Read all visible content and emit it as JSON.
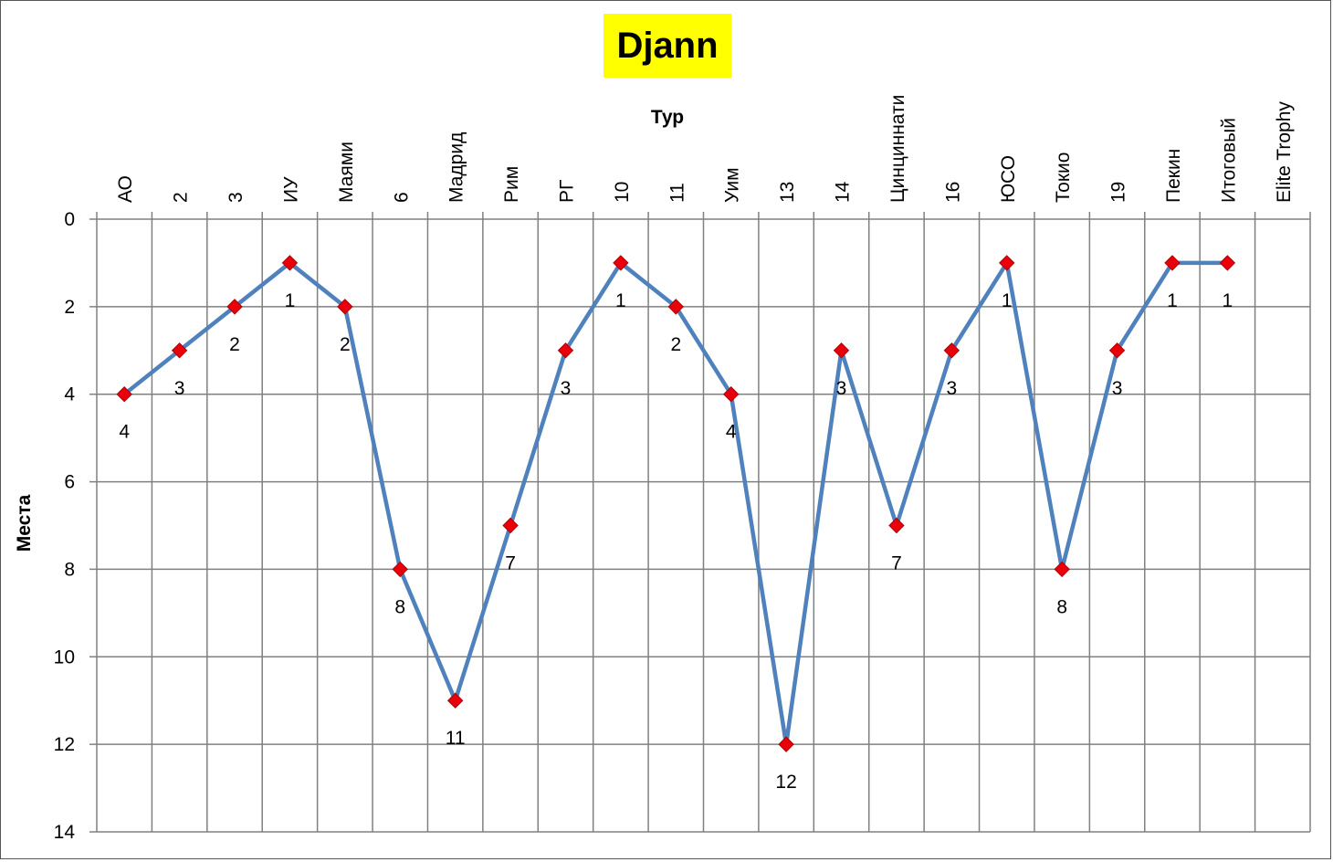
{
  "chart_data": {
    "type": "line",
    "title": "Djann",
    "xlabel": "Тур",
    "ylabel": "Места",
    "ylim": [
      0,
      14
    ],
    "y_reversed": true,
    "y_ticks": [
      0,
      2,
      4,
      6,
      8,
      10,
      12,
      14
    ],
    "grid": true,
    "categories": [
      "АО",
      "2",
      "3",
      "ИУ",
      "Маями",
      "6",
      "Мадрид",
      "Рим",
      "РГ",
      "10",
      "11",
      "Уим",
      "13",
      "14",
      "Цинциннати",
      "16",
      "ЮСО",
      "Токио",
      "19",
      "Пекин",
      "Итоговый",
      "Elite Trophy"
    ],
    "series": [
      {
        "values": [
          4,
          3,
          2,
          1,
          2,
          8,
          11,
          7,
          3,
          1,
          2,
          4,
          12,
          3,
          7,
          3,
          1,
          8,
          3,
          1,
          1,
          null
        ],
        "line_color": "#4f81bd",
        "marker_color": "#e8000b",
        "marker": "diamond"
      }
    ]
  }
}
